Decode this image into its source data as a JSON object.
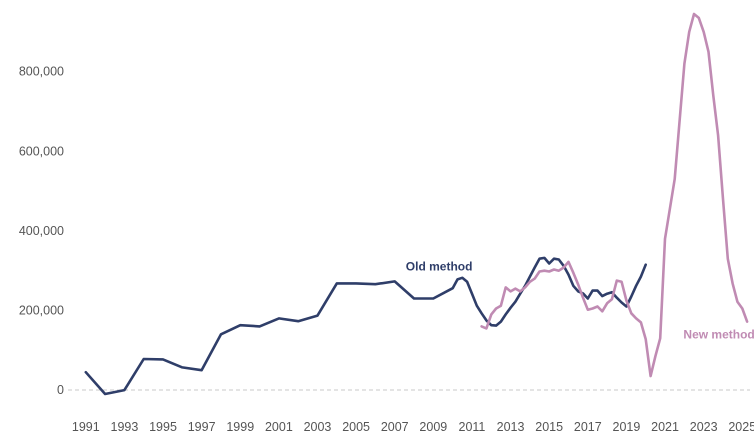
{
  "chart_data": {
    "type": "line",
    "title": "",
    "xlabel": "",
    "ylabel": "",
    "xlim": [
      1990.7,
      2025.4
    ],
    "ylim": [
      -30000,
      960000
    ],
    "x_ticks": [
      1991,
      1993,
      1995,
      1997,
      1999,
      2001,
      2003,
      2005,
      2007,
      2009,
      2011,
      2013,
      2015,
      2017,
      2019,
      2021,
      2023,
      2025
    ],
    "y_ticks": [
      {
        "value": 0,
        "label": "0"
      },
      {
        "value": 200000,
        "label": "200,000"
      },
      {
        "value": 400000,
        "label": "400,000"
      },
      {
        "value": 600000,
        "label": "600,000"
      },
      {
        "value": 800000,
        "label": "800,000"
      }
    ],
    "zero_line": "dashed",
    "grid": false,
    "legend": "none (series labelled directly on the chart)",
    "series": [
      {
        "name": "Old method",
        "color": "#2f3e69",
        "points": [
          [
            1991,
            45000
          ],
          [
            1992,
            -10000
          ],
          [
            1993,
            0
          ],
          [
            1994,
            78000
          ],
          [
            1995,
            77000
          ],
          [
            1996,
            57000
          ],
          [
            1997,
            50000
          ],
          [
            1998,
            140000
          ],
          [
            1999,
            163000
          ],
          [
            2000,
            160000
          ],
          [
            2001,
            180000
          ],
          [
            2002,
            173000
          ],
          [
            2003,
            187000
          ],
          [
            2004,
            268000
          ],
          [
            2005,
            268000
          ],
          [
            2006,
            266000
          ],
          [
            2007,
            273000
          ],
          [
            2008,
            230000
          ],
          [
            2009,
            230000
          ],
          [
            2010,
            256000
          ],
          [
            2010.25,
            278000
          ],
          [
            2010.5,
            282000
          ],
          [
            2010.75,
            272000
          ],
          [
            2011,
            242000
          ],
          [
            2011.25,
            212000
          ],
          [
            2011.5,
            193000
          ],
          [
            2011.75,
            175000
          ],
          [
            2012,
            163000
          ],
          [
            2012.25,
            162000
          ],
          [
            2012.5,
            172000
          ],
          [
            2012.75,
            190000
          ],
          [
            2013,
            207000
          ],
          [
            2013.25,
            222000
          ],
          [
            2013.5,
            242000
          ],
          [
            2013.75,
            262000
          ],
          [
            2014,
            285000
          ],
          [
            2014.25,
            308000
          ],
          [
            2014.5,
            330000
          ],
          [
            2014.75,
            332000
          ],
          [
            2015,
            318000
          ],
          [
            2015.25,
            330000
          ],
          [
            2015.5,
            328000
          ],
          [
            2015.75,
            312000
          ],
          [
            2016,
            290000
          ],
          [
            2016.25,
            262000
          ],
          [
            2016.5,
            248000
          ],
          [
            2016.75,
            243000
          ],
          [
            2017,
            230000
          ],
          [
            2017.25,
            250000
          ],
          [
            2017.5,
            250000
          ],
          [
            2017.75,
            236000
          ],
          [
            2018,
            242000
          ],
          [
            2018.25,
            246000
          ],
          [
            2018.5,
            232000
          ],
          [
            2018.75,
            220000
          ],
          [
            2019,
            210000
          ],
          [
            2019.25,
            235000
          ],
          [
            2019.5,
            262000
          ],
          [
            2019.75,
            285000
          ],
          [
            2020,
            315000
          ]
        ]
      },
      {
        "name": "New method",
        "color": "#c08bb3",
        "points": [
          [
            2011.5,
            160000
          ],
          [
            2011.75,
            155000
          ],
          [
            2012,
            190000
          ],
          [
            2012.25,
            205000
          ],
          [
            2012.5,
            212000
          ],
          [
            2012.75,
            258000
          ],
          [
            2013,
            248000
          ],
          [
            2013.25,
            255000
          ],
          [
            2013.5,
            248000
          ],
          [
            2013.75,
            258000
          ],
          [
            2014,
            272000
          ],
          [
            2014.25,
            280000
          ],
          [
            2014.5,
            298000
          ],
          [
            2014.75,
            300000
          ],
          [
            2015,
            298000
          ],
          [
            2015.25,
            303000
          ],
          [
            2015.5,
            300000
          ],
          [
            2015.75,
            308000
          ],
          [
            2016,
            322000
          ],
          [
            2016.25,
            295000
          ],
          [
            2016.5,
            265000
          ],
          [
            2016.75,
            232000
          ],
          [
            2017,
            202000
          ],
          [
            2017.25,
            205000
          ],
          [
            2017.5,
            210000
          ],
          [
            2017.75,
            198000
          ],
          [
            2018,
            218000
          ],
          [
            2018.25,
            228000
          ],
          [
            2018.5,
            275000
          ],
          [
            2018.75,
            272000
          ],
          [
            2019,
            225000
          ],
          [
            2019.25,
            193000
          ],
          [
            2019.5,
            180000
          ],
          [
            2019.75,
            170000
          ],
          [
            2020,
            128000
          ],
          [
            2020.25,
            35000
          ],
          [
            2020.5,
            85000
          ],
          [
            2020.75,
            130000
          ],
          [
            2021,
            380000
          ],
          [
            2021.5,
            530000
          ],
          [
            2022,
            820000
          ],
          [
            2022.25,
            900000
          ],
          [
            2022.5,
            945000
          ],
          [
            2022.75,
            935000
          ],
          [
            2023,
            900000
          ],
          [
            2023.25,
            850000
          ],
          [
            2023.5,
            740000
          ],
          [
            2023.75,
            640000
          ],
          [
            2024,
            480000
          ],
          [
            2024.25,
            330000
          ],
          [
            2024.5,
            268000
          ],
          [
            2024.75,
            222000
          ],
          [
            2025,
            205000
          ],
          [
            2025.25,
            172000
          ]
        ]
      }
    ],
    "annotations": [
      {
        "text": "Old method",
        "series": 0,
        "x": 2009.3,
        "y": 300000
      },
      {
        "text": "New method",
        "series": 1,
        "x": 2023.8,
        "y": 130000
      }
    ]
  }
}
